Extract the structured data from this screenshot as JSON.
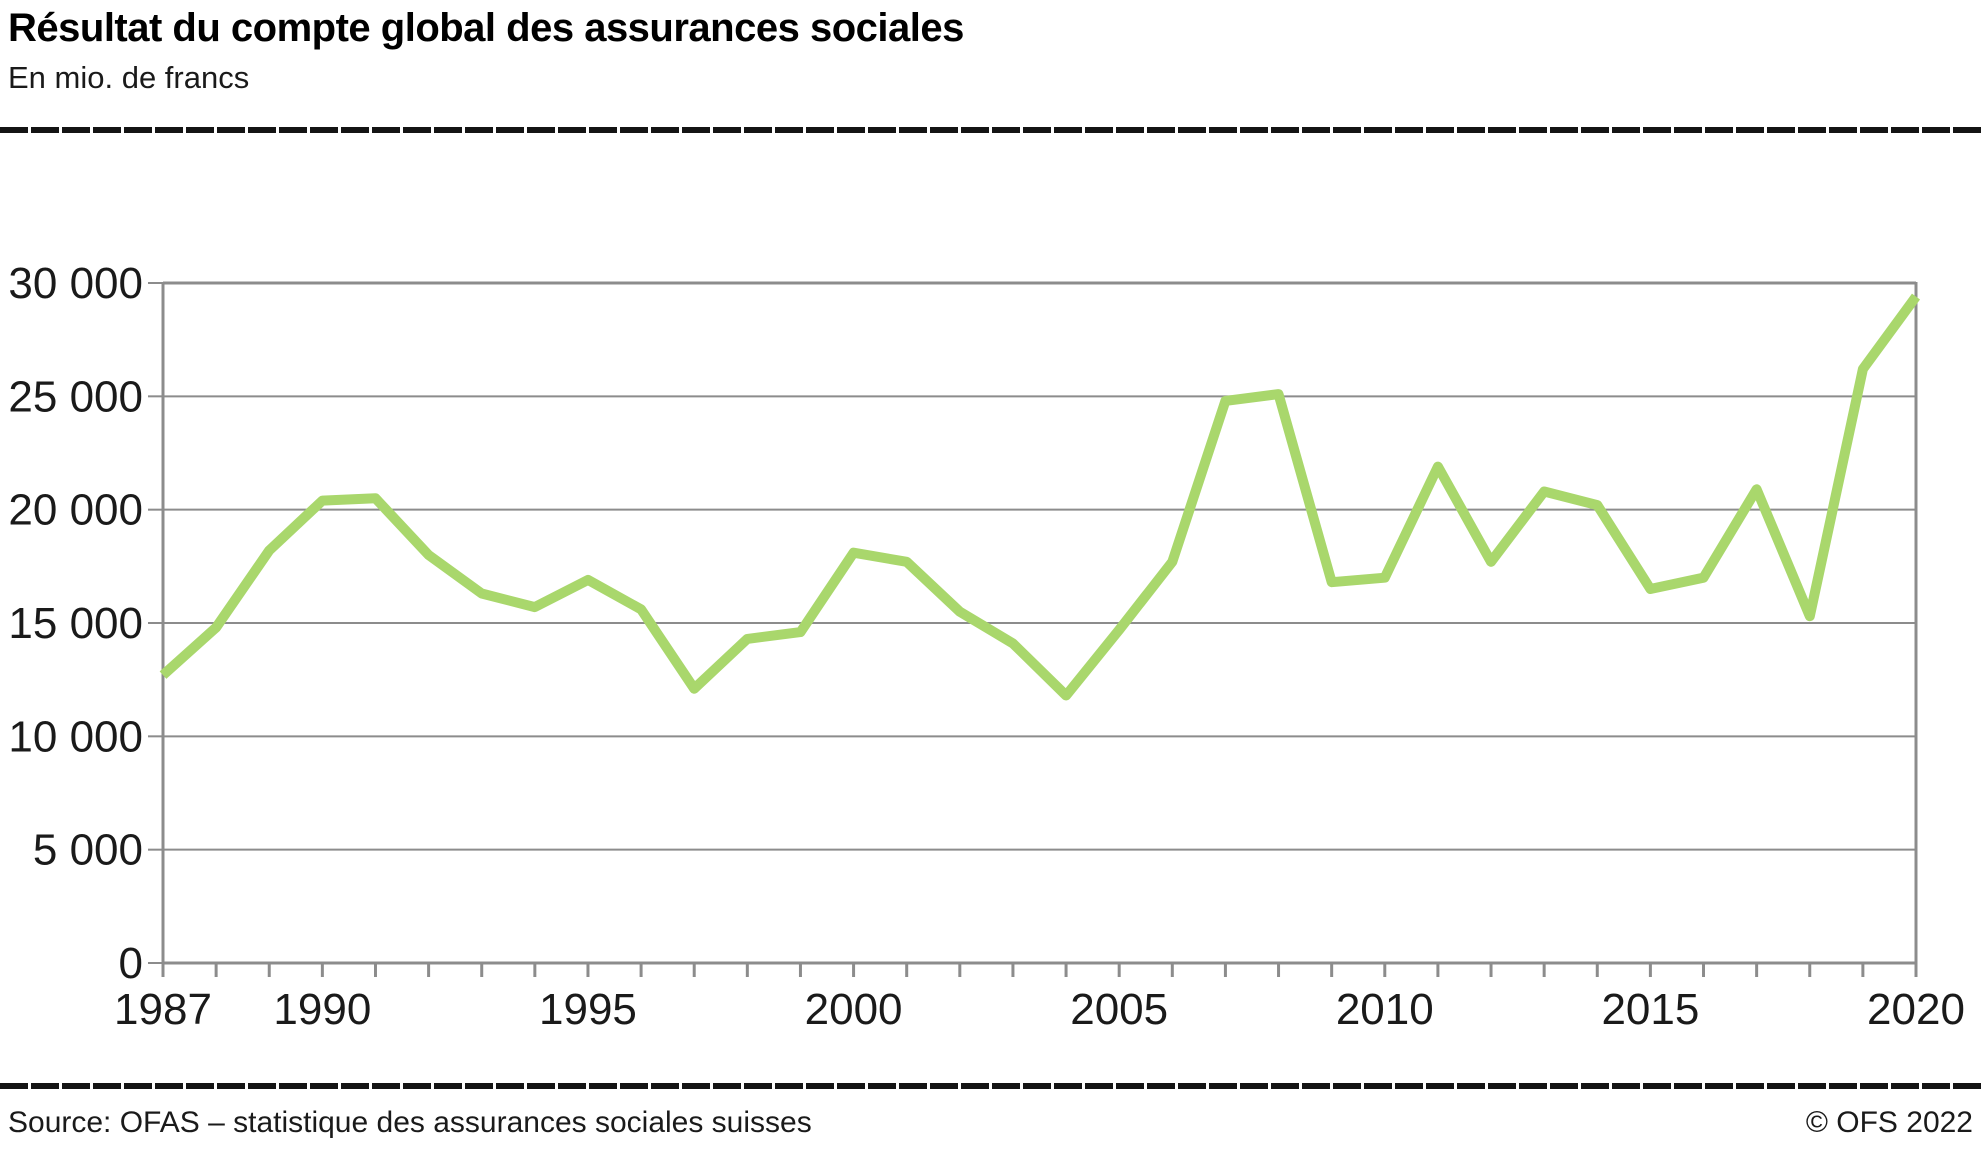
{
  "header": {
    "title": "Résultat du compte global des assurances sociales",
    "subtitle": "En mio. de francs"
  },
  "footer": {
    "source": "Source: OFAS – statistique des assurances sociales suisses",
    "copyright": "© OFS 2022"
  },
  "colors": {
    "line": "#a9d76c",
    "grid": "#8c8c8c",
    "axis": "#8c8c8c",
    "text": "#1a1a1a",
    "rule": "#141414"
  },
  "chart_data": {
    "type": "line",
    "title": "Résultat du compte global des assurances sociales",
    "unit_label": "En mio. de francs",
    "x": [
      1987,
      1988,
      1989,
      1990,
      1991,
      1992,
      1993,
      1994,
      1995,
      1996,
      1997,
      1998,
      1999,
      2000,
      2001,
      2002,
      2003,
      2004,
      2005,
      2006,
      2007,
      2008,
      2009,
      2010,
      2011,
      2012,
      2013,
      2014,
      2015,
      2016,
      2017,
      2018,
      2019,
      2020
    ],
    "values": [
      12700,
      14800,
      18200,
      20400,
      20500,
      18000,
      16300,
      15700,
      16900,
      15600,
      12100,
      14300,
      14600,
      18100,
      17700,
      15500,
      14100,
      11800,
      14700,
      17700,
      24800,
      25100,
      16800,
      17000,
      21900,
      17700,
      20800,
      20200,
      16500,
      17000,
      20900,
      15300,
      26200,
      29400
    ],
    "xlim": [
      1987,
      2020
    ],
    "ylim": [
      0,
      30000
    ],
    "ytick_values": [
      0,
      5000,
      10000,
      15000,
      20000,
      25000,
      30000
    ],
    "ytick_labels": [
      "0",
      "5 000",
      "10 000",
      "15 000",
      "20 000",
      "25 000",
      "30 000"
    ],
    "xtick_every": 1,
    "xtick_labeled_years": [
      1987,
      1990,
      1995,
      2000,
      2005,
      2010,
      2015,
      2020
    ],
    "grid": true,
    "legend": false
  }
}
